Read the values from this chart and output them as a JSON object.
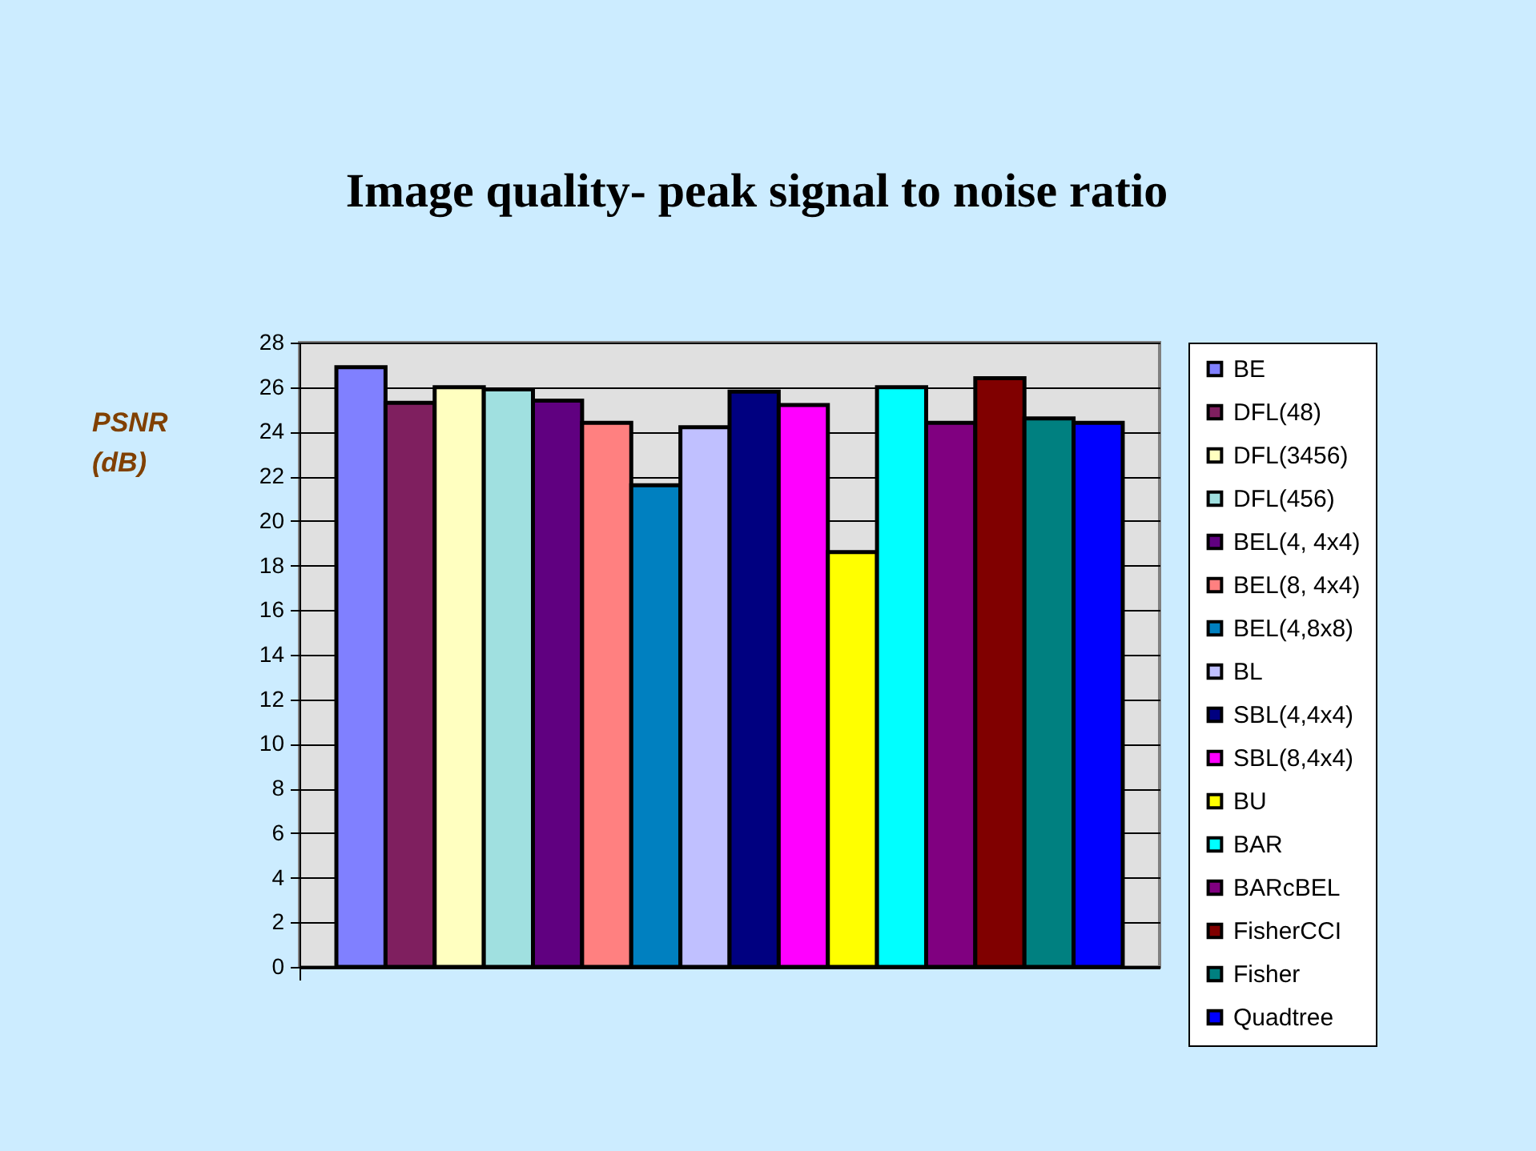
{
  "chart_data": {
    "type": "bar",
    "title": "Image quality- peak signal to noise ratio",
    "ylabel": "PSNR (dB)",
    "categories": [
      null
    ],
    "series": [
      {
        "name": "BE",
        "color": "#8080ff",
        "values": [
          26.9
        ]
      },
      {
        "name": "DFL(48)",
        "color": "#7f1f5f",
        "values": [
          25.3
        ]
      },
      {
        "name": "DFL(3456)",
        "color": "#ffffc0",
        "values": [
          26.0
        ]
      },
      {
        "name": "DFL(456)",
        "color": "#a0e0e0",
        "values": [
          25.9
        ]
      },
      {
        "name": "BEL(4, 4x4)",
        "color": "#600080",
        "values": [
          25.4
        ]
      },
      {
        "name": "BEL(8, 4x4)",
        "color": "#ff8080",
        "values": [
          24.4
        ]
      },
      {
        "name": "BEL(4,8x8)",
        "color": "#0080c0",
        "values": [
          21.6
        ]
      },
      {
        "name": "BL",
        "color": "#c0c0ff",
        "values": [
          24.2
        ]
      },
      {
        "name": "SBL(4,4x4)",
        "color": "#000080",
        "values": [
          25.8
        ]
      },
      {
        "name": "SBL(8,4x4)",
        "color": "#ff00ff",
        "values": [
          25.2
        ]
      },
      {
        "name": "BU",
        "color": "#ffff00",
        "values": [
          18.6
        ]
      },
      {
        "name": "BAR",
        "color": "#00ffff",
        "values": [
          26.0
        ]
      },
      {
        "name": "BARcBEL",
        "color": "#800080",
        "values": [
          24.4
        ]
      },
      {
        "name": "FisherCCI",
        "color": "#800000",
        "values": [
          26.4
        ]
      },
      {
        "name": "Fisher",
        "color": "#008080",
        "values": [
          24.6
        ]
      },
      {
        "name": "Quadtree",
        "color": "#0000ff",
        "values": [
          24.4
        ]
      }
    ],
    "ylim": [
      0,
      28
    ],
    "yticks": [
      0,
      2,
      4,
      6,
      8,
      10,
      12,
      14,
      16,
      18,
      20,
      22,
      24,
      26,
      28
    ],
    "grid": "y",
    "legend": "right",
    "tick_labels": "y"
  }
}
